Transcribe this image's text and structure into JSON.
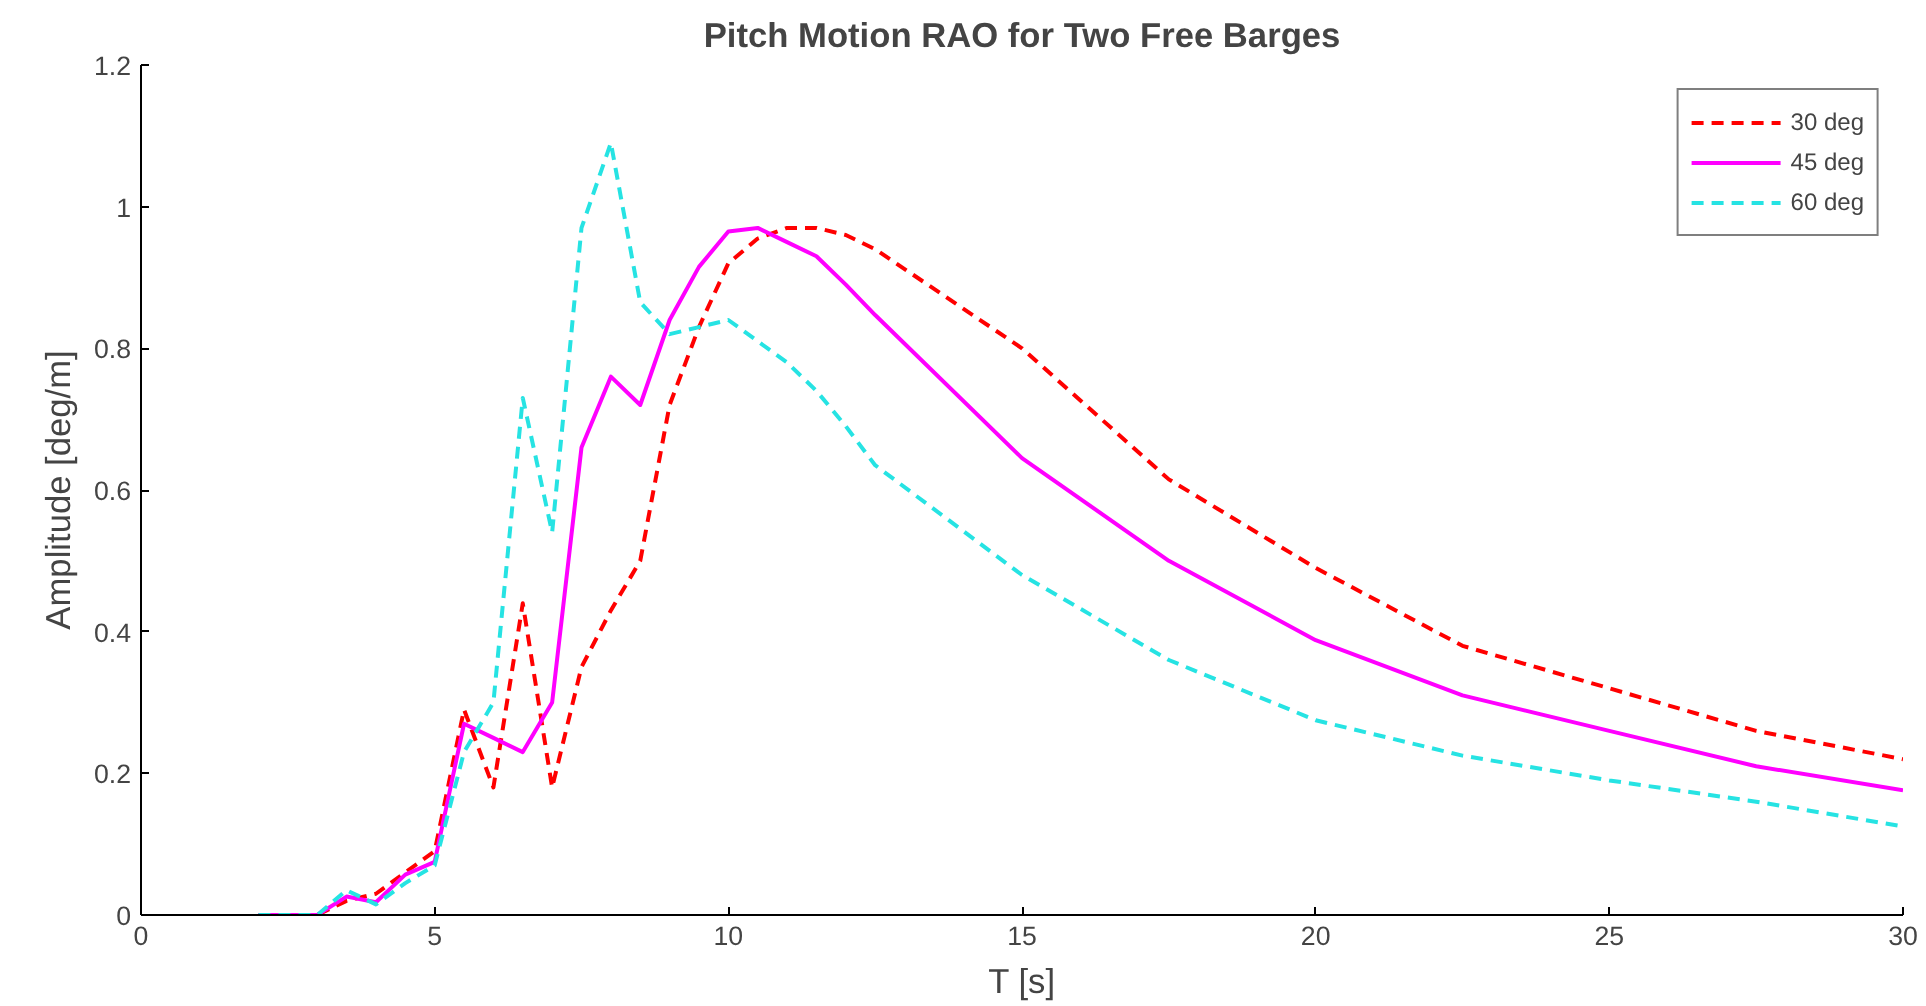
{
  "chart_data": {
    "type": "line",
    "title": "Pitch Motion RAO for Two Free Barges",
    "xlabel": "T [s]",
    "ylabel": "Amplitude [deg/m]",
    "x": [
      2,
      2.5,
      3,
      3.5,
      4,
      4.5,
      5,
      5.5,
      6,
      6.5,
      7,
      7.5,
      8,
      8.5,
      9,
      9.5,
      10,
      10.5,
      11,
      11.5,
      12,
      12.5,
      15,
      17.5,
      20,
      22.5,
      25,
      27.5,
      30
    ],
    "series": [
      {
        "name": "30 deg",
        "color": "#ff0000",
        "line_style": "dashed",
        "values": [
          0,
          0,
          0,
          0.02,
          0.03,
          0.06,
          0.09,
          0.29,
          0.18,
          0.44,
          0.18,
          0.35,
          0.43,
          0.5,
          0.72,
          0.83,
          0.92,
          0.955,
          0.97,
          0.97,
          0.96,
          0.94,
          0.8,
          0.615,
          0.49,
          0.38,
          0.32,
          0.26,
          0.22
        ]
      },
      {
        "name": "45 deg",
        "color": "#ff00ff",
        "line_style": "solid",
        "values": [
          0,
          0,
          0,
          0.026,
          0.018,
          0.057,
          0.075,
          0.27,
          0.25,
          0.23,
          0.3,
          0.66,
          0.76,
          0.72,
          0.84,
          0.915,
          0.965,
          0.97,
          0.95,
          0.93,
          0.89,
          0.847,
          0.645,
          0.5,
          0.388,
          0.31,
          0.26,
          0.21,
          0.176
        ]
      },
      {
        "name": "60 deg",
        "color": "#26e3e3",
        "line_style": "dashed",
        "values": [
          0,
          0,
          0,
          0.035,
          0.015,
          0.045,
          0.07,
          0.23,
          0.3,
          0.73,
          0.54,
          0.97,
          1.09,
          0.865,
          0.82,
          0.83,
          0.84,
          0.81,
          0.78,
          0.74,
          0.69,
          0.635,
          0.48,
          0.36,
          0.275,
          0.225,
          0.19,
          0.16,
          0.125
        ]
      }
    ],
    "xlim": [
      0,
      30
    ],
    "ylim": [
      0,
      1.2
    ],
    "xticks": [
      0,
      5,
      10,
      15,
      20,
      25,
      30
    ],
    "yticks": [
      0,
      0.2,
      0.4,
      0.6,
      0.8,
      1,
      1.2
    ],
    "grid": false,
    "legend": "top right"
  }
}
